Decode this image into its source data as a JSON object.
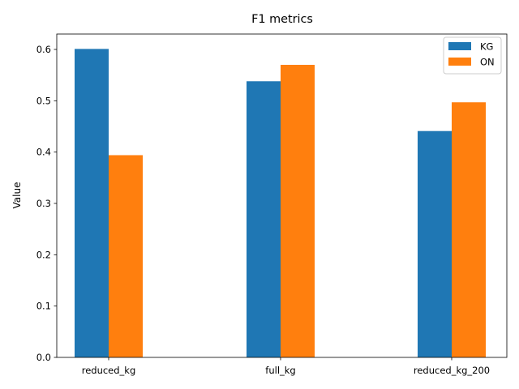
{
  "chart_data": {
    "type": "bar",
    "title": "F1 metrics",
    "xlabel": "",
    "ylabel": "Value",
    "categories": [
      "reduced_kg",
      "full_kg",
      "reduced_kg_200"
    ],
    "series": [
      {
        "name": "KG",
        "color": "#1f77b4",
        "values": [
          0.601,
          0.538,
          0.441
        ]
      },
      {
        "name": "ON",
        "color": "#ff7f0e",
        "values": [
          0.394,
          0.57,
          0.497
        ]
      }
    ],
    "ylim": [
      0,
      0.63
    ],
    "yticks": [
      "0.0",
      "0.1",
      "0.2",
      "0.3",
      "0.4",
      "0.5",
      "0.6"
    ],
    "legend": "upper-right",
    "grid": false
  }
}
